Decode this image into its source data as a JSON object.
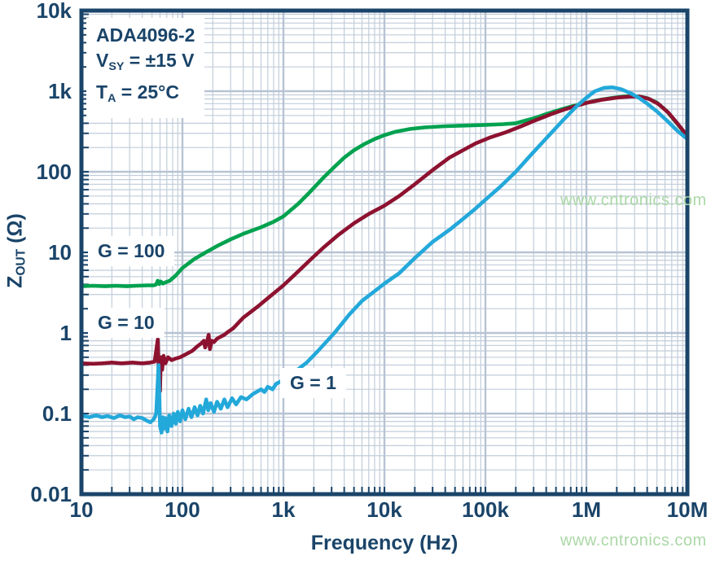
{
  "title_box": {
    "line1": "ADA4096-2",
    "line2_prefix": "V",
    "line2_sub": "SY",
    "line2_suffix": " = ±15 V",
    "line3_prefix": "T",
    "line3_sub": "A",
    "line3_suffix": " = 25°C"
  },
  "watermark": {
    "text": "www.cntronics.com"
  },
  "colors": {
    "navy": "#1a4469",
    "grid_major": "#b7c3d3",
    "grid_minor": "#c1cdda",
    "green": "#00a24f",
    "maroon": "#8d1230",
    "cyan": "#23a8da",
    "watermark": "#abd8a6",
    "background": "#ffffff"
  },
  "chart_data": {
    "type": "line",
    "x_axis": {
      "label": "Frequency (Hz)",
      "scale": "log",
      "min": 10,
      "max": 10000000,
      "ticks": [
        {
          "value": 10,
          "label": "10"
        },
        {
          "value": 100,
          "label": "100"
        },
        {
          "value": 1000,
          "label": "1k"
        },
        {
          "value": 10000,
          "label": "10k"
        },
        {
          "value": 100000,
          "label": "100k"
        },
        {
          "value": 1000000,
          "label": "1M"
        },
        {
          "value": 10000000,
          "label": "10M"
        }
      ]
    },
    "y_axis": {
      "label_prefix": "Z",
      "label_sub": "OUT",
      "label_suffix": " (Ω)",
      "scale": "log",
      "min": 0.01,
      "max": 10000,
      "ticks": [
        {
          "value": 10000,
          "label": "10k"
        },
        {
          "value": 1000,
          "label": "1k"
        },
        {
          "value": 100,
          "label": "100"
        },
        {
          "value": 10,
          "label": "10"
        },
        {
          "value": 1,
          "label": "1"
        },
        {
          "value": 0.1,
          "label": "0.1"
        },
        {
          "value": 0.01,
          "label": "0.01"
        }
      ]
    },
    "grid": true,
    "legend_position": "inline-labels",
    "series": [
      {
        "label": "G = 100",
        "color_key": "green",
        "points": [
          [
            10,
            3.8
          ],
          [
            13,
            3.85
          ],
          [
            17,
            3.8
          ],
          [
            22,
            3.85
          ],
          [
            28,
            3.8
          ],
          [
            35,
            3.85
          ],
          [
            45,
            3.9
          ],
          [
            52,
            3.9
          ],
          [
            55,
            4.0
          ],
          [
            57,
            4.45
          ],
          [
            59,
            4.05
          ],
          [
            61,
            4.35
          ],
          [
            64,
            4.1
          ],
          [
            68,
            4.25
          ],
          [
            75,
            4.45
          ],
          [
            85,
            5.1
          ],
          [
            100,
            6.4
          ],
          [
            130,
            8.2
          ],
          [
            170,
            10
          ],
          [
            220,
            12
          ],
          [
            300,
            14.5
          ],
          [
            400,
            17
          ],
          [
            600,
            20.5
          ],
          [
            800,
            24
          ],
          [
            1000,
            28
          ],
          [
            1400,
            40
          ],
          [
            1800,
            55
          ],
          [
            2500,
            85
          ],
          [
            3200,
            115
          ],
          [
            4000,
            150
          ],
          [
            5000,
            185
          ],
          [
            6300,
            220
          ],
          [
            8000,
            255
          ],
          [
            10000,
            285
          ],
          [
            13000,
            315
          ],
          [
            18000,
            340
          ],
          [
            25000,
            355
          ],
          [
            40000,
            368
          ],
          [
            60000,
            374
          ],
          [
            100000,
            382
          ],
          [
            150000,
            390
          ],
          [
            200000,
            400
          ],
          [
            300000,
            460
          ],
          [
            400000,
            520
          ],
          [
            550000,
            590
          ],
          [
            700000,
            645
          ],
          [
            1000000,
            715
          ],
          [
            1300000,
            775
          ],
          [
            1800000,
            825
          ],
          [
            2300000,
            858
          ],
          [
            2800000,
            868
          ],
          [
            3300000,
            860
          ],
          [
            4000000,
            820
          ],
          [
            5000000,
            720
          ],
          [
            6300000,
            560
          ],
          [
            8000000,
            390
          ],
          [
            10000000,
            275
          ]
        ]
      },
      {
        "label": "G = 10",
        "color_key": "maroon",
        "points": [
          [
            10,
            0.42
          ],
          [
            13,
            0.415
          ],
          [
            16,
            0.42
          ],
          [
            20,
            0.43
          ],
          [
            25,
            0.42
          ],
          [
            32,
            0.43
          ],
          [
            40,
            0.42
          ],
          [
            48,
            0.43
          ],
          [
            53,
            0.44
          ],
          [
            55,
            0.6
          ],
          [
            57,
            0.83
          ],
          [
            58.5,
            0.28
          ],
          [
            60,
            0.19
          ],
          [
            61,
            0.5
          ],
          [
            63,
            0.35
          ],
          [
            65,
            0.52
          ],
          [
            68,
            0.42
          ],
          [
            72,
            0.5
          ],
          [
            78,
            0.46
          ],
          [
            85,
            0.48
          ],
          [
            95,
            0.5
          ],
          [
            110,
            0.55
          ],
          [
            125,
            0.6
          ],
          [
            140,
            0.68
          ],
          [
            155,
            0.75
          ],
          [
            163,
            0.8
          ],
          [
            168,
            0.66
          ],
          [
            175,
            0.78
          ],
          [
            182,
            0.95
          ],
          [
            187,
            0.63
          ],
          [
            195,
            0.8
          ],
          [
            205,
            0.77
          ],
          [
            220,
            0.85
          ],
          [
            240,
            0.9
          ],
          [
            260,
            0.95
          ],
          [
            280,
            1.02
          ],
          [
            320,
            1.15
          ],
          [
            400,
            1.55
          ],
          [
            550,
            2.1
          ],
          [
            700,
            2.7
          ],
          [
            1000,
            3.9
          ],
          [
            1400,
            5.8
          ],
          [
            1830,
            8
          ],
          [
            2500,
            11.5
          ],
          [
            3500,
            16.5
          ],
          [
            5000,
            23
          ],
          [
            7000,
            30
          ],
          [
            10000,
            38
          ],
          [
            14000,
            50
          ],
          [
            20000,
            70
          ],
          [
            30000,
            105
          ],
          [
            44000,
            150
          ],
          [
            60000,
            185
          ],
          [
            80000,
            225
          ],
          [
            110000,
            265
          ],
          [
            160000,
            310
          ],
          [
            230000,
            370
          ],
          [
            320000,
            440
          ],
          [
            450000,
            520
          ],
          [
            600000,
            590
          ],
          [
            800000,
            660
          ],
          [
            1000000,
            715
          ],
          [
            1400000,
            780
          ],
          [
            2000000,
            830
          ],
          [
            2800000,
            862
          ],
          [
            3400000,
            855
          ],
          [
            4200000,
            800
          ],
          [
            5200000,
            690
          ],
          [
            6500000,
            540
          ],
          [
            8000000,
            395
          ],
          [
            10000000,
            278
          ]
        ]
      },
      {
        "label": "G = 1",
        "color_key": "cyan",
        "points": [
          [
            10,
            0.095
          ],
          [
            12,
            0.09
          ],
          [
            14,
            0.095
          ],
          [
            16,
            0.09
          ],
          [
            18,
            0.093
          ],
          [
            21,
            0.088
          ],
          [
            24,
            0.095
          ],
          [
            27,
            0.09
          ],
          [
            30,
            0.092
          ],
          [
            33,
            0.085
          ],
          [
            36,
            0.09
          ],
          [
            40,
            0.088
          ],
          [
            44,
            0.082
          ],
          [
            48,
            0.078
          ],
          [
            52,
            0.085
          ],
          [
            55,
            0.1
          ],
          [
            57,
            0.25
          ],
          [
            58,
            0.4
          ],
          [
            59,
            0.18
          ],
          [
            60,
            0.07
          ],
          [
            62,
            0.058
          ],
          [
            64,
            0.09
          ],
          [
            66,
            0.065
          ],
          [
            68,
            0.088
          ],
          [
            71,
            0.06
          ],
          [
            74,
            0.095
          ],
          [
            78,
            0.07
          ],
          [
            82,
            0.1
          ],
          [
            86,
            0.075
          ],
          [
            90,
            0.105
          ],
          [
            95,
            0.08
          ],
          [
            100,
            0.11
          ],
          [
            107,
            0.085
          ],
          [
            115,
            0.115
          ],
          [
            123,
            0.09
          ],
          [
            132,
            0.12
          ],
          [
            141,
            0.095
          ],
          [
            150,
            0.125
          ],
          [
            160,
            0.1
          ],
          [
            172,
            0.15
          ],
          [
            180,
            0.11
          ],
          [
            190,
            0.135
          ],
          [
            205,
            0.105
          ],
          [
            220,
            0.14
          ],
          [
            240,
            0.115
          ],
          [
            260,
            0.15
          ],
          [
            280,
            0.12
          ],
          [
            310,
            0.155
          ],
          [
            340,
            0.13
          ],
          [
            380,
            0.16
          ],
          [
            430,
            0.15
          ],
          [
            500,
            0.175
          ],
          [
            600,
            0.2
          ],
          [
            650,
            0.185
          ],
          [
            700,
            0.215
          ],
          [
            780,
            0.2
          ],
          [
            850,
            0.235
          ],
          [
            1000,
            0.26
          ],
          [
            1300,
            0.33
          ],
          [
            1700,
            0.43
          ],
          [
            2200,
            0.6
          ],
          [
            3200,
            1.0
          ],
          [
            4500,
            1.7
          ],
          [
            6000,
            2.5
          ],
          [
            8000,
            3.3
          ],
          [
            10000,
            4.1
          ],
          [
            14000,
            5.5
          ],
          [
            20000,
            8.5
          ],
          [
            30000,
            13.5
          ],
          [
            44000,
            19
          ],
          [
            60000,
            26
          ],
          [
            80000,
            35
          ],
          [
            100000,
            45
          ],
          [
            140000,
            65
          ],
          [
            200000,
            100
          ],
          [
            280000,
            160
          ],
          [
            400000,
            260
          ],
          [
            580000,
            430
          ],
          [
            800000,
            650
          ],
          [
            1000000,
            830
          ],
          [
            1200000,
            990
          ],
          [
            1500000,
            1100
          ],
          [
            1800000,
            1115
          ],
          [
            2200000,
            1060
          ],
          [
            2700000,
            950
          ],
          [
            3300000,
            830
          ],
          [
            4000000,
            700
          ],
          [
            5000000,
            560
          ],
          [
            6300000,
            430
          ],
          [
            8000000,
            320
          ],
          [
            10000000,
            255
          ]
        ]
      }
    ]
  }
}
